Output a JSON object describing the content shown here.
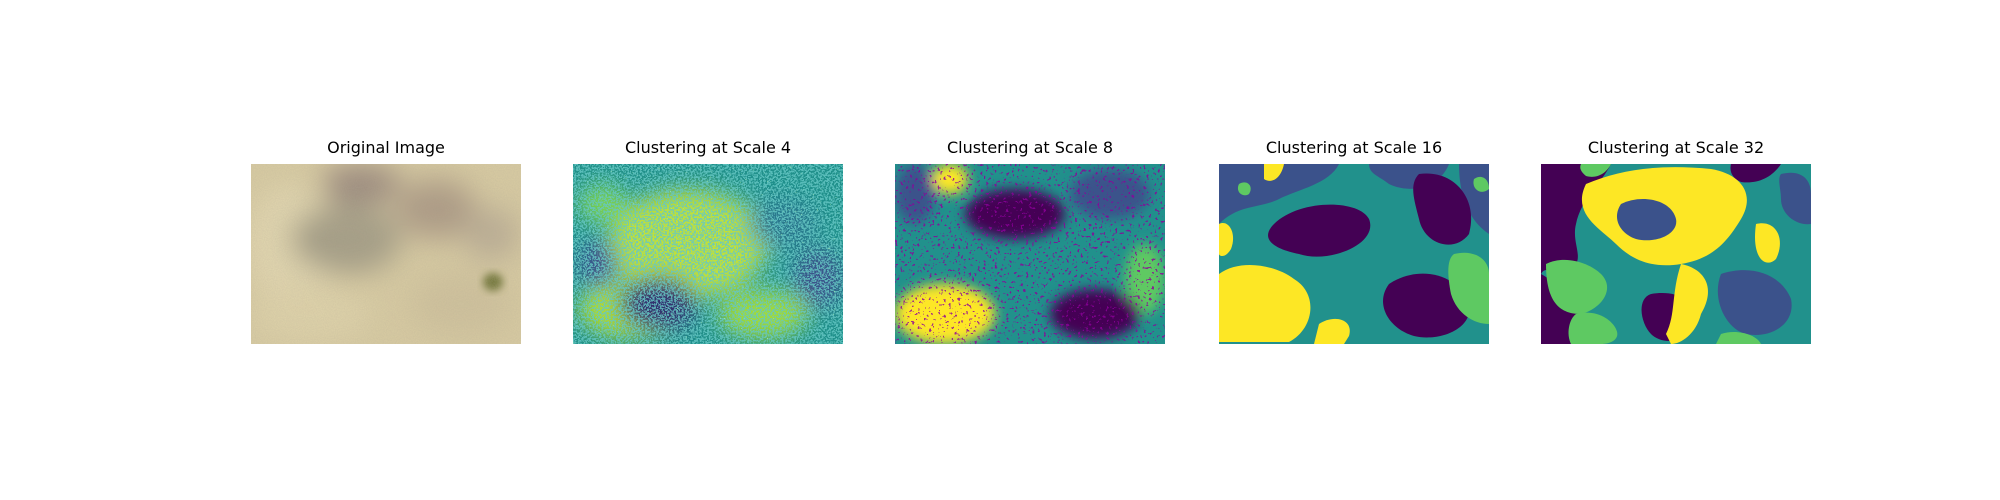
{
  "panels": [
    {
      "title": "Original Image",
      "kind": "photo"
    },
    {
      "title": "Clustering at Scale 4",
      "kind": "cluster",
      "scale": 4
    },
    {
      "title": "Clustering at Scale 8",
      "kind": "cluster",
      "scale": 8
    },
    {
      "title": "Clustering at Scale 16",
      "kind": "cluster",
      "scale": 16
    },
    {
      "title": "Clustering at Scale 32",
      "kind": "cluster",
      "scale": 32
    }
  ],
  "colors": {
    "cluster_dark_purple": "#440154",
    "cluster_blue": "#3b528b",
    "cluster_teal": "#21918c",
    "cluster_green": "#5ec962",
    "cluster_yellow": "#fde725",
    "photo_sand": "#d6c9a0",
    "photo_shadow": "#8f8570",
    "photo_algae": "#6f7436"
  }
}
